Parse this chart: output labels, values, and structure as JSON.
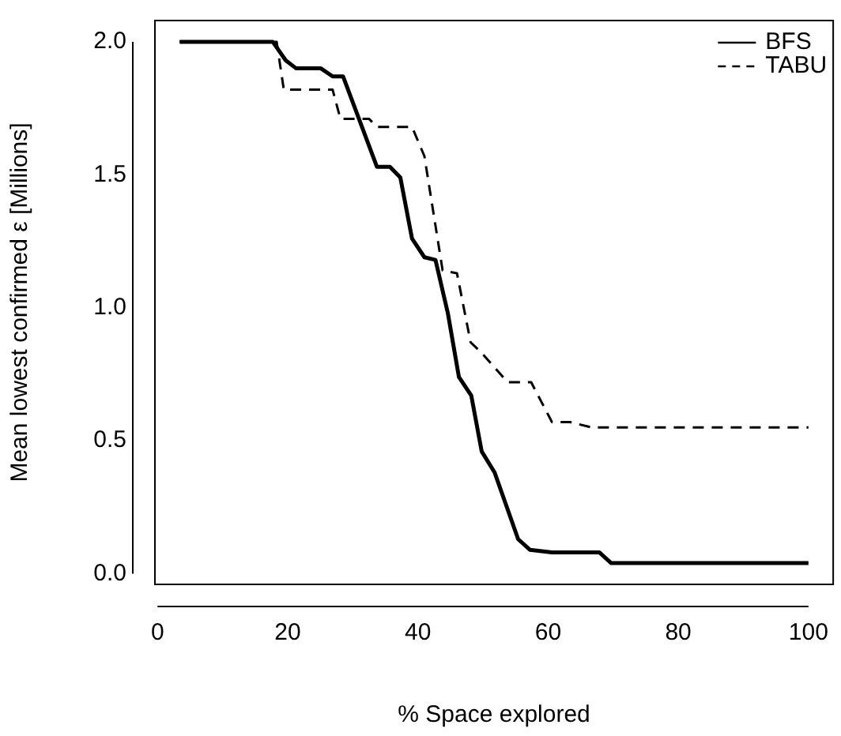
{
  "chart_data": {
    "type": "line",
    "xlabel": "% Space explored",
    "ylabel": "Mean lowest confirmed ε [Millions]",
    "xlim": [
      -0.4,
      103.8
    ],
    "ylim": [
      -0.04,
      2.08
    ],
    "xticks": [
      0,
      20,
      40,
      60,
      80,
      100
    ],
    "yticks": [
      {
        "value": 0,
        "label": "0.0"
      },
      {
        "value": 0.5,
        "label": "0.5"
      },
      {
        "value": 1,
        "label": "1.0"
      },
      {
        "value": 1.5,
        "label": "1.5"
      },
      {
        "value": 2,
        "label": "2.0"
      }
    ],
    "grid": false,
    "legend": "top right",
    "marker": "none",
    "series": [
      {
        "name": "BFS",
        "color": "#000000",
        "line_style": "solid",
        "x": [
          3.4,
          17.7,
          19.7,
          21.3,
          25.1,
          26.9,
          28.5,
          33.7,
          35.7,
          37.3,
          39.1,
          41,
          42.7,
          44.6,
          46.3,
          48.2,
          49.8,
          51.8,
          55.4,
          57.2,
          60.6,
          67.9,
          69.7,
          100
        ],
        "values": [
          2,
          2,
          1.93,
          1.9,
          1.9,
          1.87,
          1.87,
          1.53,
          1.53,
          1.49,
          1.26,
          1.19,
          1.18,
          0.98,
          0.74,
          0.67,
          0.46,
          0.38,
          0.13,
          0.09,
          0.08,
          0.08,
          0.04,
          0.04
        ]
      },
      {
        "name": "TABU",
        "color": "#000000",
        "line_style": "dashed",
        "x": [
          3.4,
          18.3,
          19.4,
          26.9,
          28.1,
          32.5,
          33.7,
          39.1,
          41,
          43.8,
          46,
          48.1,
          49.8,
          53.8,
          57.4,
          60.6,
          63.4,
          66.7,
          100
        ],
        "values": [
          2,
          2,
          1.82,
          1.82,
          1.71,
          1.71,
          1.68,
          1.68,
          1.57,
          1.14,
          1.13,
          0.87,
          0.83,
          0.72,
          0.72,
          0.57,
          0.57,
          0.55,
          0.55
        ]
      }
    ]
  }
}
